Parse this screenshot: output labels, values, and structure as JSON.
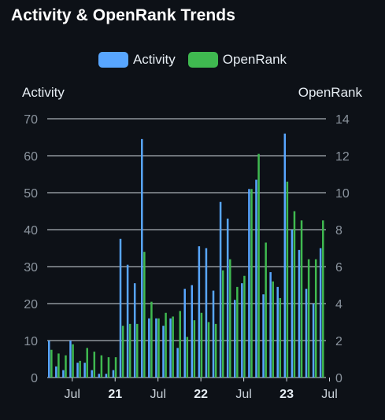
{
  "chart_data": {
    "type": "bar",
    "title": "Activity & OpenRank Trends",
    "legend": {
      "placement": "top-center"
    },
    "yaxis_left": {
      "label": "Activity",
      "range": [
        0,
        70
      ],
      "ticks": [
        "0",
        "10",
        "20",
        "30",
        "40",
        "50",
        "60",
        "70"
      ]
    },
    "yaxis_right": {
      "label": "OpenRank",
      "range": [
        0,
        14
      ],
      "ticks": [
        "0",
        "2",
        "4",
        "6",
        "8",
        "10",
        "12",
        "14"
      ]
    },
    "grid": true,
    "x_tick_labels": [
      {
        "label": "Jul",
        "index": 3,
        "year": false
      },
      {
        "label": "21",
        "index": 9,
        "year": true
      },
      {
        "label": "Jul",
        "index": 15,
        "year": false
      },
      {
        "label": "22",
        "index": 21,
        "year": true
      },
      {
        "label": "Jul",
        "index": 27,
        "year": false
      },
      {
        "label": "23",
        "index": 33,
        "year": true
      },
      {
        "label": "Jul",
        "index": 39,
        "year": false
      }
    ],
    "series": [
      {
        "name": "Activity",
        "axis": "left",
        "color": "#58a6ff",
        "values": [
          10,
          3,
          2,
          10,
          4,
          4,
          2,
          1,
          1,
          2,
          37.5,
          30.5,
          25.5,
          64.5,
          16,
          16,
          14,
          16,
          8,
          24,
          25,
          35.5,
          35,
          23.5,
          47.5,
          43,
          21,
          25.5,
          51,
          53.5,
          22.5,
          28.5,
          24.5,
          66,
          40,
          34.5,
          24,
          20,
          35
        ]
      },
      {
        "name": "OpenRank",
        "axis": "right",
        "color": "#3fb950",
        "values": [
          1.5,
          1.3,
          1.2,
          1.8,
          0.9,
          1.6,
          1.4,
          1.2,
          1.1,
          1.1,
          2.8,
          2.9,
          2.9,
          6.8,
          4.1,
          3.2,
          3.5,
          3.3,
          3.6,
          2.2,
          3.1,
          3.5,
          3.0,
          2.9,
          5.8,
          6.4,
          4.9,
          5.5,
          10.2,
          12.1,
          7.3,
          5.2,
          4.3,
          10.6,
          9.0,
          8.5,
          6.4,
          6.4,
          8.5
        ]
      }
    ]
  }
}
